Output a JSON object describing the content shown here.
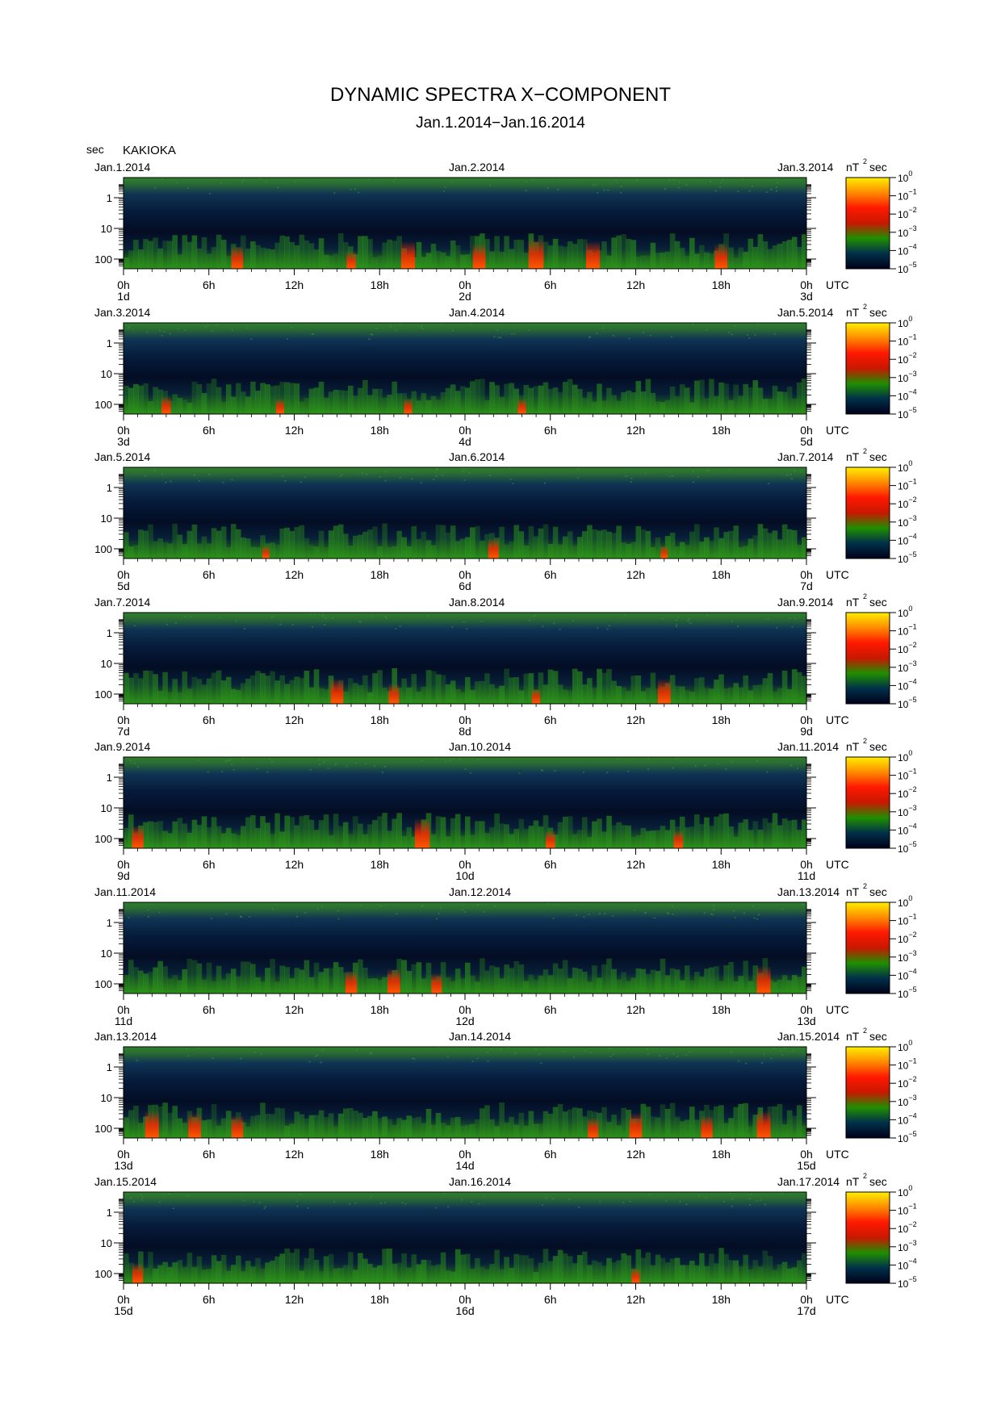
{
  "figure": {
    "title": "DYNAMIC SPECTRA X−COMPONENT",
    "subtitle": "Jan.1.2014−Jan.16.2014",
    "period_unit": "sec",
    "station": "KAKIOKA"
  },
  "colorbar": {
    "unit": "nT",
    "unit_exp": "2",
    "unit_suffix": "sec",
    "base": "10",
    "exponents": [
      "0",
      "−1",
      "−2",
      "−3",
      "−4",
      "−5"
    ],
    "stops": [
      "#ffef00",
      "#ff8a00",
      "#ff1800",
      "#c81800",
      "#1f8f00",
      "#00304a",
      "#000018"
    ]
  },
  "chart_data": {
    "type": "heatmap",
    "description_x": "time (UTC)",
    "x_tick_labels": [
      "0h",
      "6h",
      "12h",
      "18h",
      "0h",
      "6h",
      "12h",
      "18h",
      "0h"
    ],
    "x_suffix": "UTC",
    "y_tick_labels": [
      "1",
      "10",
      "100"
    ],
    "y_scale": "log",
    "y_inverted": true,
    "color_scale": "log",
    "color_range": [
      1e-05,
      1
    ],
    "panels": [
      {
        "start_date": "Jan.1.2014",
        "mid_date": "Jan.2.2014",
        "end_date": "Jan.3.2014",
        "day_labels": [
          "1d",
          "2d",
          "3d"
        ],
        "red_events": [
          [
            8,
            0.6
          ],
          [
            16,
            0.4
          ],
          [
            20,
            0.8
          ],
          [
            25,
            0.7
          ],
          [
            29,
            0.9
          ],
          [
            33,
            0.8
          ],
          [
            42,
            0.7
          ]
        ]
      },
      {
        "start_date": "Jan.3.2014",
        "mid_date": "Jan.4.2014",
        "end_date": "Jan.5.2014",
        "day_labels": [
          "3d",
          "4d",
          "5d"
        ],
        "red_events": [
          [
            3,
            0.4
          ],
          [
            11,
            0.3
          ],
          [
            20,
            0.3
          ],
          [
            28,
            0.3
          ]
        ]
      },
      {
        "start_date": "Jan.5.2014",
        "mid_date": "Jan.6.2014",
        "end_date": "Jan.7.2014",
        "day_labels": [
          "5d",
          "6d",
          "7d"
        ],
        "red_events": [
          [
            10,
            0.2
          ],
          [
            26,
            0.5
          ],
          [
            38,
            0.2
          ]
        ]
      },
      {
        "start_date": "Jan.7.2014",
        "mid_date": "Jan.8.2014",
        "end_date": "Jan.9.2014",
        "day_labels": [
          "7d",
          "8d",
          "9d"
        ],
        "red_events": [
          [
            15,
            0.7
          ],
          [
            19,
            0.5
          ],
          [
            29,
            0.3
          ],
          [
            38,
            0.7
          ]
        ]
      },
      {
        "start_date": "Jan.9.2014",
        "mid_date": "Jan.10.2014",
        "end_date": "Jan.11.2014",
        "day_labels": [
          "9d",
          "10d",
          "11d"
        ],
        "red_events": [
          [
            1,
            0.6
          ],
          [
            21,
            0.9
          ],
          [
            30,
            0.4
          ],
          [
            39,
            0.4
          ]
        ]
      },
      {
        "start_date": "Jan.11.2014",
        "mid_date": "Jan.12.2014",
        "end_date": "Jan.13.2014",
        "day_labels": [
          "11d",
          "12d",
          "13d"
        ],
        "red_events": [
          [
            16,
            0.6
          ],
          [
            19,
            0.7
          ],
          [
            22,
            0.5
          ],
          [
            45,
            0.8
          ]
        ]
      },
      {
        "start_date": "Jan.13.2014",
        "mid_date": "Jan.14.2014",
        "end_date": "Jan.15.2014",
        "day_labels": [
          "13d",
          "14d",
          "15d"
        ],
        "red_events": [
          [
            2,
            0.8
          ],
          [
            5,
            0.7
          ],
          [
            8,
            0.6
          ],
          [
            33,
            0.5
          ],
          [
            36,
            0.7
          ],
          [
            41,
            0.6
          ],
          [
            45,
            0.8
          ]
        ]
      },
      {
        "start_date": "Jan.15.2014",
        "mid_date": "Jan.16.2014",
        "end_date": "Jan.17.2014",
        "day_labels": [
          "15d",
          "16d",
          "17d"
        ],
        "red_events": [
          [
            1,
            0.5
          ],
          [
            36,
            0.3
          ]
        ]
      }
    ]
  }
}
